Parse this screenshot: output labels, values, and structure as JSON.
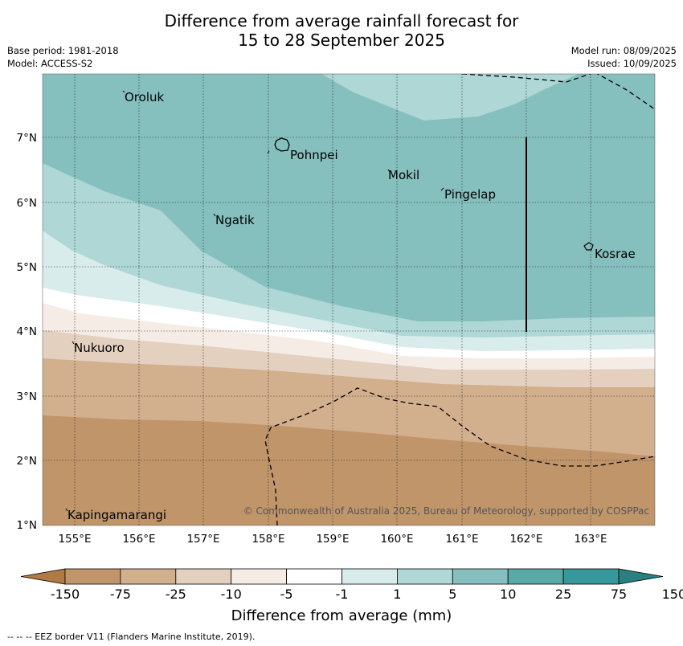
{
  "title_line1": "Difference from average rainfall forecast for",
  "title_line2": "15 to 28 September 2025",
  "base_period": "Base period: 1981-2018",
  "model": "Model: ACCESS-S2",
  "model_run": "Model run: 08/09/2025",
  "issued": "Issued: 10/09/2025",
  "places": {
    "oroluk": "Oroluk",
    "pohnpei": "Pohnpei",
    "mokil": "Mokil",
    "pingelap": "Pingelap",
    "ngatik": "Ngatik",
    "kosrae": "Kosrae",
    "nukuoro": "Nukuoro",
    "kapingamarangi": "Kapingamarangi"
  },
  "lat_labels": [
    "7°N",
    "6°N",
    "5°N",
    "4°N",
    "3°N",
    "2°N",
    "1°N"
  ],
  "lon_labels": [
    "155°E",
    "156°E",
    "157°E",
    "158°E",
    "159°E",
    "160°E",
    "161°E",
    "162°E",
    "163°E"
  ],
  "copyright": "© Commonwealth of Australia 2025, Bureau of Meteorology, supported by COSPPac",
  "colorbar": {
    "labels": [
      "-150",
      "-75",
      "-25",
      "-10",
      "-5",
      "-1",
      "1",
      "5",
      "10",
      "25",
      "75",
      "150"
    ],
    "colors": [
      "#b07a45",
      "#c0956a",
      "#d2af8d",
      "#e4d0bf",
      "#f5ece6",
      "#ffffff",
      "#d8eceb",
      "#aed7d5",
      "#85c0be",
      "#59a9a8",
      "#35989a",
      "#2a7f80"
    ],
    "title": "Difference from average (mm)"
  },
  "footnote": "-- -- -- EEZ border V11 (Flanders Marine Institute, 2019)."
}
